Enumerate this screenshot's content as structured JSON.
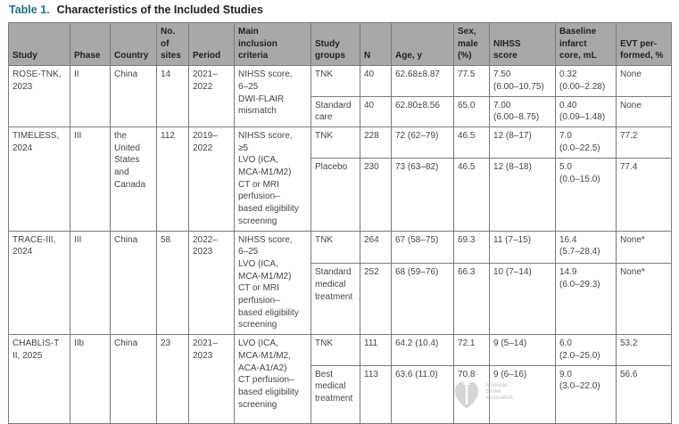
{
  "table": {
    "number": "Table 1.",
    "title": "Characteristics of the Included Studies",
    "headers": [
      "Study",
      "Phase",
      "Country",
      "No.\nof\nsites",
      "Period",
      "Main\ninclusion\ncriteria",
      "Study\ngroups",
      "N",
      "Age, y",
      "Sex,\nmale\n(%)",
      "NIHSS\nscore",
      "Baseline\ninfarct\ncore, mL",
      "EVT per-\nformed, %"
    ],
    "studies": [
      {
        "study": "ROSE-TNK,\n2023",
        "phase": "II",
        "country": "China",
        "sites": "14",
        "period": "2021–\n2022",
        "criteria": "NIHSS score,\n6–25\nDWI-FLAIR\nmismatch",
        "groups": [
          {
            "group": "TNK",
            "n": "40",
            "age": "62.68±8.87",
            "sex": "77.5",
            "nihss": "7.50\n(6.00–10.75)",
            "core": "0.32\n(0.00–2.28)",
            "evt": "None"
          },
          {
            "group": "Standard\ncare",
            "n": "40",
            "age": "62.80±8.56",
            "sex": "65.0",
            "nihss": "7.00\n(6.00–8.75)",
            "core": "0.40\n(0.09–1.48)",
            "evt": "None"
          }
        ]
      },
      {
        "study": "TIMELESS,\n2024",
        "phase": "III",
        "country": "the\nUnited\nStates\nand\nCanada",
        "sites": "112",
        "period": "2019–\n2022",
        "criteria": "NIHSS score,\n≥5\nLVO (ICA,\nMCA-M1/M2)\nCT or MRI\nperfusion–\nbased eligibility\nscreening",
        "groups": [
          {
            "group": "TNK",
            "n": "228",
            "age": "72 (62–79)",
            "sex": "46.5",
            "nihss": "12 (8–17)",
            "core": "7.0\n(0.0–22.5)",
            "evt": "77.2"
          },
          {
            "group": "Placebo",
            "n": "230",
            "age": "73 (63–82)",
            "sex": "46.5",
            "nihss": "12 (8–18)",
            "core": "5.0\n(0.0–15.0)",
            "evt": "77.4"
          }
        ]
      },
      {
        "study": "TRACE-III,\n2024",
        "phase": "III",
        "country": "China",
        "sites": "58",
        "period": "2022–\n2023",
        "criteria": "NIHSS score,\n6–25\nLVO (ICA,\nMCA-M1/M2)\nCT or MRI\nperfusion–\nbased eligibility\nscreening",
        "groups": [
          {
            "group": "TNK",
            "n": "264",
            "age": "67 (58–75)",
            "sex": "69.3",
            "nihss": "11 (7–15)",
            "core": "16.4\n(5.7–28.4)",
            "evt": "None*"
          },
          {
            "group": "Standard\nmedical\ntreatment",
            "n": "252",
            "age": "68 (59–76)",
            "sex": "66.3",
            "nihss": "10 (7–14)",
            "core": "14.9\n(6.0–29.3)",
            "evt": "None*"
          }
        ]
      },
      {
        "study": "CHABLIS-T\nII, 2025",
        "phase": "IIb",
        "country": "China",
        "sites": "23",
        "period": "2021–\n2023",
        "criteria": "LVO (ICA,\nMCA-M1/M2,\nACA-A1/A2)\nCT perfusion–\nbased eligibility\nscreening",
        "groups": [
          {
            "group": "TNK",
            "n": "111",
            "age": "64.2 (10.4)",
            "sex": "72.1",
            "nihss": "9 (5–14)",
            "core": "6.0\n(2.0–25.0)",
            "evt": "53.2"
          },
          {
            "group": "Best\nmedical\ntreatment",
            "n": "113",
            "age": "63.6 (11.0)",
            "sex": "70.8",
            "nihss": "9 (6–16)",
            "core": "9.0\n(3.0–22.0)",
            "evt": "56.6"
          }
        ]
      }
    ]
  },
  "logo": {
    "text": "American Stroke Association.",
    "icon": "heart-torch-icon"
  },
  "colors": {
    "title_number": "#1d6f8c",
    "header_bg": "#a8a8a8"
  }
}
